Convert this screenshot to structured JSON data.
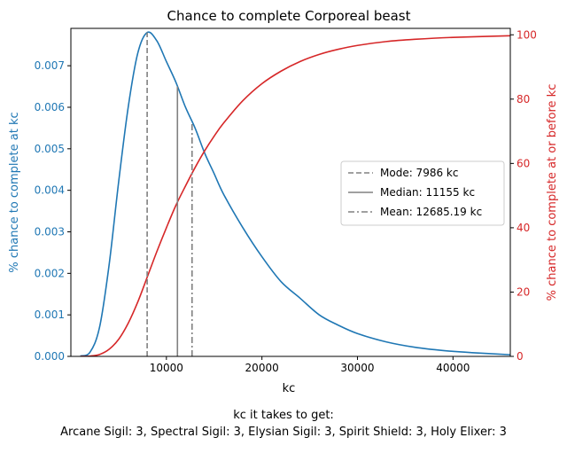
{
  "chart_data": {
    "type": "line",
    "title": "Chance to complete Corporeal beast",
    "xlabel": "kc",
    "ylabel_left": "% chance to complete at kc",
    "ylabel_right": "% chance to complete at or before kc",
    "xlim": [
      0,
      46000
    ],
    "ylim_left": [
      0,
      0.0079
    ],
    "ylim_right": [
      0,
      102
    ],
    "x_ticks": [
      10000,
      20000,
      30000,
      40000
    ],
    "x_tick_labels": [
      "10000",
      "20000",
      "30000",
      "40000"
    ],
    "y_left_ticks": [
      0,
      0.001,
      0.002,
      0.003,
      0.004,
      0.005,
      0.006,
      0.007
    ],
    "y_left_tick_labels": [
      "0.000",
      "0.001",
      "0.002",
      "0.003",
      "0.004",
      "0.005",
      "0.006",
      "0.007"
    ],
    "y_right_ticks": [
      0,
      20,
      40,
      60,
      80,
      100
    ],
    "y_right_tick_labels": [
      "0",
      "20",
      "40",
      "60",
      "80",
      "100"
    ],
    "grid": false,
    "legend_position": "center-right",
    "series": [
      {
        "axis": "left",
        "color": "#1f77b4",
        "x": [
          1000,
          2000,
          3000,
          4000,
          5000,
          6000,
          7000,
          7986,
          9000,
          10000,
          11000,
          12000,
          13000,
          14000,
          15000,
          16000,
          18000,
          20000,
          22000,
          24000,
          26000,
          28000,
          30000,
          33000,
          36000,
          39000,
          42000,
          46000
        ],
        "values": [
          1e-05,
          0.0001,
          0.0007,
          0.0022,
          0.0042,
          0.006,
          0.0073,
          0.0078,
          0.0076,
          0.0071,
          0.0066,
          0.006,
          0.0055,
          0.0049,
          0.0044,
          0.0039,
          0.0031,
          0.0024,
          0.0018,
          0.0014,
          0.001,
          0.00075,
          0.00055,
          0.00035,
          0.00022,
          0.00014,
          9e-05,
          4e-05
        ]
      },
      {
        "axis": "right",
        "color": "#d62728",
        "x": [
          1000,
          2000,
          3000,
          4000,
          5000,
          6000,
          7000,
          8000,
          9000,
          10000,
          11000,
          12000,
          13000,
          14000,
          15000,
          16000,
          18000,
          20000,
          22000,
          24000,
          26000,
          28000,
          30000,
          33000,
          36000,
          40000,
          46000
        ],
        "values": [
          0,
          0.1,
          0.6,
          2.2,
          5.3,
          10.3,
          16.9,
          24.7,
          32.6,
          40,
          47,
          53,
          58.7,
          63.9,
          68.5,
          72.6,
          79.5,
          84.8,
          88.7,
          91.7,
          93.9,
          95.5,
          96.7,
          97.9,
          98.6,
          99.2,
          99.7
        ]
      }
    ],
    "vlines": [
      {
        "x": 7986,
        "value_left": 0.0078,
        "style": "dashed",
        "label": "Mode: 7986 kc"
      },
      {
        "x": 11155,
        "value_left": 0.0065,
        "style": "solid",
        "label": "Median: 11155 kc"
      },
      {
        "x": 12685.19,
        "value_left": 0.0056,
        "style": "dashdot",
        "label": "Mean: 12685.19 kc"
      }
    ],
    "colors": {
      "left_axis": "#1f77b4",
      "right_axis": "#d62728",
      "vlines": "#808080"
    }
  },
  "caption": {
    "line1": "kc it takes to get:",
    "line2": "Arcane Sigil: 3,  Spectral Sigil: 3,  Elysian Sigil: 3,  Spirit Shield: 3,  Holy Elixer: 3"
  }
}
